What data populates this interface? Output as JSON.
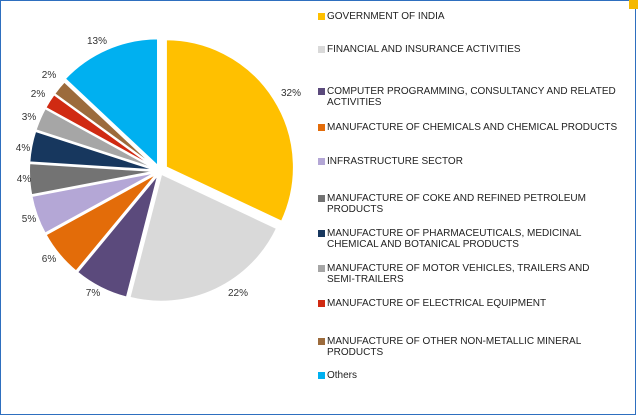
{
  "chart_data": {
    "type": "pie",
    "title": "",
    "slices": [
      {
        "label": "GOVERNMENT OF INDIA",
        "value": 32,
        "display": "32%",
        "color": "#ffc000"
      },
      {
        "label": "FINANCIAL AND INSURANCE ACTIVITIES",
        "value": 22,
        "display": "22%",
        "color": "#d9d9d9"
      },
      {
        "label": "COMPUTER PROGRAMMING, CONSULTANCY AND RELATED ACTIVITIES",
        "value": 7,
        "display": "7%",
        "color": "#5b4a7c"
      },
      {
        "label": "MANUFACTURE OF CHEMICALS AND CHEMICAL PRODUCTS",
        "value": 6,
        "display": "6%",
        "color": "#e36c09"
      },
      {
        "label": "INFRASTRUCTURE SECTOR",
        "value": 5,
        "display": "5%",
        "color": "#b4a7d6"
      },
      {
        "label": "MANUFACTURE OF COKE AND REFINED PETROLEUM PRODUCTS",
        "value": 4,
        "display": "4%",
        "color": "#737373"
      },
      {
        "label": "MANUFACTURE OF PHARMACEUTICALS, MEDICINAL CHEMICAL AND BOTANICAL PRODUCTS",
        "value": 4,
        "display": "4%",
        "color": "#17375e"
      },
      {
        "label": "MANUFACTURE OF MOTOR VEHICLES, TRAILERS AND SEMI-TRAILERS",
        "value": 3,
        "display": "3%",
        "color": "#a6a6a6"
      },
      {
        "label": "MANUFACTURE OF ELECTRICAL EQUIPMENT",
        "value": 2,
        "display": "2%",
        "color": "#d02a12"
      },
      {
        "label": "MANUFACTURE OF OTHER NON-METALLIC MINERAL PRODUCTS",
        "value": 2,
        "display": "2%",
        "color": "#9c6b3c"
      },
      {
        "label": "Others",
        "value": 13,
        "display": "13%",
        "color": "#00b0f0"
      }
    ],
    "legend": {
      "placement": "right"
    }
  }
}
